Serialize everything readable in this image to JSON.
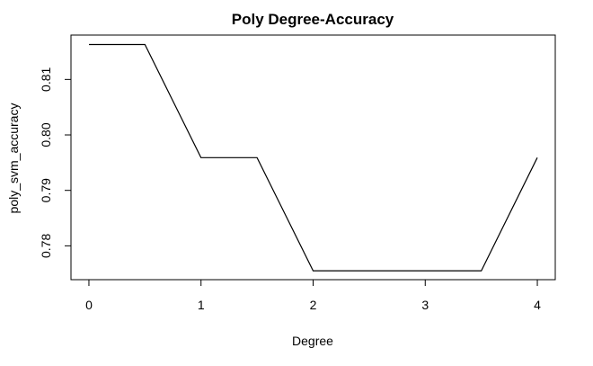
{
  "chart_data": {
    "type": "line",
    "title": "Poly Degree-Accuracy",
    "xlabel": "Degree",
    "ylabel": "poly_svm_accuracy",
    "x": [
      0,
      0.5,
      1,
      1.5,
      2,
      2.5,
      3,
      3.5,
      4
    ],
    "series": [
      {
        "values": [
          0.8163,
          0.8163,
          0.7959,
          0.7959,
          0.7755,
          0.7755,
          0.7755,
          0.7755,
          0.7959
        ],
        "color": "#000000"
      }
    ],
    "xticks": [
      0,
      1,
      2,
      3,
      4
    ],
    "yticks": [
      0.78,
      0.79,
      0.8,
      0.81
    ],
    "xtick_labels": [
      "0",
      "1",
      "2",
      "3",
      "4"
    ],
    "ytick_labels": [
      "0.78",
      "0.79",
      "0.80",
      "0.81"
    ],
    "xlim": [
      -0.16,
      4.16
    ],
    "ylim": [
      0.7739,
      0.818
    ],
    "grid": false,
    "legend": "none",
    "box": true
  }
}
